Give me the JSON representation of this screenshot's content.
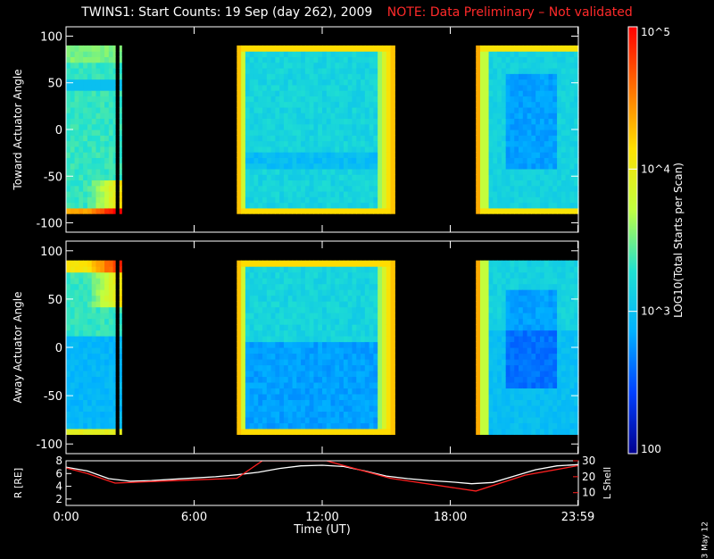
{
  "title": {
    "main": "TWINS1: Start Counts: 19 Sep (day 262), 2009",
    "note": "NOTE: Data Preliminary – Not validated"
  },
  "side_date": "3 May 12",
  "colors": {
    "background": "#000000",
    "axes": "#ffffff",
    "note": "#ff2a2a",
    "r_line": "#ffffff",
    "l_line": "#ff2020"
  },
  "chart_data": [
    {
      "type": "heatmap",
      "panel": "top",
      "ylabel": "Toward Actuator Angle",
      "ylim": [
        -110,
        110
      ],
      "yticks": [
        -100,
        -50,
        0,
        50,
        100
      ],
      "xlim": [
        0,
        24
      ],
      "data_angle_range": [
        -90,
        90
      ],
      "coverage_hours": [
        [
          0.0,
          2.3
        ],
        [
          2.5,
          2.6
        ],
        [
          8.0,
          15.4
        ],
        [
          19.2,
          24.0
        ]
      ]
    },
    {
      "type": "heatmap",
      "panel": "bottom",
      "ylabel": "Away Actuator Angle",
      "ylim": [
        -110,
        110
      ],
      "yticks": [
        -100,
        -50,
        0,
        50,
        100
      ],
      "xlim": [
        0,
        24
      ],
      "data_angle_range": [
        -90,
        90
      ],
      "coverage_hours": [
        [
          0.0,
          2.3
        ],
        [
          2.5,
          2.6
        ],
        [
          8.0,
          15.4
        ],
        [
          19.2,
          24.0
        ]
      ]
    },
    {
      "type": "line",
      "panel": "ephemeris",
      "xlabel": "Time (UT)",
      "xticks": [
        "0:00",
        "6:00",
        "12:00",
        "18:00",
        "23:59"
      ],
      "xtick_hours": [
        0,
        6,
        12,
        18,
        23.98
      ],
      "ylabel_left": "R [RE]",
      "yticks_left": [
        2,
        4,
        6,
        8
      ],
      "ylim_left": [
        1,
        8
      ],
      "ylabel_right": "L Shell",
      "yticks_right": [
        10,
        20,
        30
      ],
      "ylim_right": [
        2,
        30
      ],
      "series": [
        {
          "name": "R [RE]",
          "x": [
            0,
            1,
            2,
            3,
            4,
            5,
            6,
            7,
            8,
            9,
            10,
            11,
            12,
            13,
            14,
            15,
            16,
            17,
            18,
            19,
            20,
            21,
            22,
            23,
            24
          ],
          "y": [
            7.0,
            6.4,
            5.2,
            4.8,
            4.9,
            5.1,
            5.3,
            5.5,
            5.8,
            6.2,
            6.8,
            7.2,
            7.3,
            7.1,
            6.4,
            5.6,
            5.2,
            4.9,
            4.7,
            4.4,
            4.6,
            5.6,
            6.6,
            7.2,
            7.4
          ]
        },
        {
          "name": "L Shell",
          "x": [
            0,
            1,
            2.3,
            5,
            8,
            9.2,
            12.2,
            15.2,
            19.2,
            21.5,
            24
          ],
          "y": [
            25.5,
            22,
            16,
            17.5,
            19,
            30,
            30,
            19,
            11,
            21,
            27
          ]
        }
      ]
    }
  ],
  "colorbar": {
    "label": "LOG10(Total Starts per Scan)",
    "ticks": [
      "10^5",
      "10^4",
      "10^3",
      "100"
    ],
    "tick_values": [
      100000,
      10000,
      1000,
      100
    ],
    "range": [
      100,
      100000
    ],
    "colors": [
      "#00008f",
      "#0040ff",
      "#00b0ff",
      "#20e0d0",
      "#c0ff40",
      "#ffe000",
      "#ff7000",
      "#ff0000"
    ]
  }
}
